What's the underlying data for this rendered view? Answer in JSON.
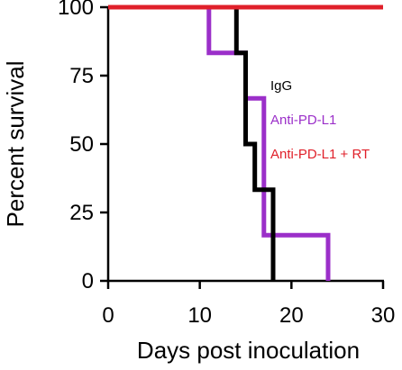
{
  "chart_data": {
    "type": "line",
    "step": true,
    "xlabel": "Days post inoculation",
    "ylabel": "Percent survival",
    "xlim": [
      0,
      30
    ],
    "ylim": [
      0,
      100
    ],
    "xticks": [
      0,
      10,
      20,
      30
    ],
    "yticks": [
      0,
      25,
      50,
      75,
      100
    ],
    "grid": false,
    "legend": "inline-right",
    "series": [
      {
        "name": "IgG",
        "color": "#000000",
        "x": [
          0,
          14,
          14,
          15,
          15,
          16,
          16,
          18,
          18
        ],
        "y": [
          100,
          100,
          83.3,
          83.3,
          50,
          50,
          33.3,
          33.3,
          0
        ]
      },
      {
        "name": "Anti-PD-L1",
        "color": "#9b2fc9",
        "x": [
          0,
          11,
          11,
          15,
          15,
          17,
          17,
          24,
          24
        ],
        "y": [
          100,
          100,
          83.3,
          83.3,
          66.7,
          66.7,
          16.7,
          16.7,
          0
        ]
      },
      {
        "name": "Anti-PD-L1 + RT",
        "color": "#e0202a",
        "x": [
          0,
          30
        ],
        "y": [
          100,
          100
        ]
      }
    ]
  }
}
